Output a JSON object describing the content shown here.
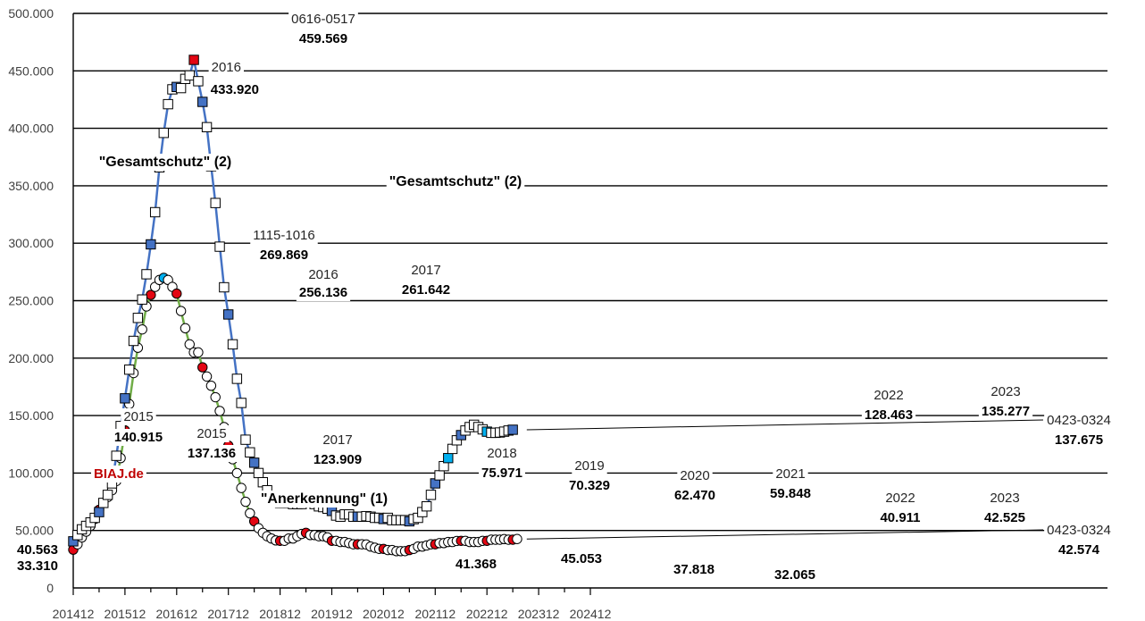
{
  "chart_data": {
    "type": "line",
    "ylim": [
      0,
      500000
    ],
    "y_ticks": [
      0,
      50000,
      100000,
      150000,
      200000,
      250000,
      300000,
      350000,
      400000,
      450000,
      500000
    ],
    "y_tick_labels": [
      "0",
      "50.000",
      "100.000",
      "150.000",
      "200.000",
      "250.000",
      "300.000",
      "350.000",
      "400.000",
      "450.000",
      "500.000"
    ],
    "x_tick_labels": [
      "201412",
      "201512",
      "201612",
      "201712",
      "201812",
      "201912",
      "202012",
      "202112",
      "202212",
      "202312",
      "202412"
    ],
    "grid": true,
    "brand": "BIAJ.de",
    "series": [
      {
        "name": "\"Gesamtschutz\" (2)",
        "line_color": "#4472c4",
        "start": "2014-12",
        "values": [
          40563,
          46000,
          51000,
          54000,
          57000,
          61000,
          66000,
          74000,
          81000,
          91000,
          115000,
          140915,
          165000,
          190000,
          215000,
          235000,
          251000,
          273000,
          299000,
          327000,
          366000,
          396000,
          421000,
          433920,
          436000,
          435000,
          443000,
          446000,
          459569,
          441000,
          423000,
          401000,
          367000,
          335000,
          297000,
          261642,
          238000,
          212000,
          182000,
          161000,
          129000,
          118000,
          109000,
          100000,
          92000,
          85000,
          80000,
          75971,
          74000,
          74000,
          74000,
          73000,
          73000,
          73000,
          76000,
          76000,
          73000,
          71000,
          70329,
          69000,
          67000,
          63000,
          62000,
          64000,
          64000,
          62000,
          62000,
          62000,
          62470,
          62000,
          61000,
          61000,
          60000,
          61000,
          59000,
          59000,
          59000,
          59000,
          58000,
          59848,
          61000,
          66000,
          71000,
          81000,
          91000,
          98000,
          106000,
          113000,
          121000,
          128463,
          133000,
          137000,
          140000,
          142000,
          140000,
          138000,
          136000,
          135000,
          135000,
          135277,
          136000,
          137000,
          137675
        ]
      },
      {
        "name": "\"Anerkennung\" (1)",
        "line_color": "#70ad47",
        "start": "2014-12",
        "values": [
          33310,
          38000,
          44000,
          49000,
          54000,
          60000,
          68000,
          74000,
          79000,
          85000,
          93000,
          113000,
          137136,
          160000,
          187000,
          209000,
          225000,
          245000,
          255000,
          262000,
          268000,
          269869,
          268000,
          262000,
          256136,
          241000,
          226000,
          212000,
          205000,
          205000,
          192000,
          184000,
          176000,
          166000,
          154000,
          140000,
          123909,
          112000,
          100000,
          87000,
          75000,
          65000,
          58000,
          52000,
          48000,
          45000,
          43000,
          41368,
          41000,
          41000,
          43000,
          43000,
          45000,
          47000,
          48000,
          46000,
          46000,
          45000,
          45053,
          44000,
          41000,
          41000,
          40000,
          40000,
          39000,
          38000,
          38000,
          38000,
          37818,
          36000,
          35000,
          34000,
          34000,
          33000,
          33000,
          32000,
          32000,
          32065,
          33000,
          34000,
          36000,
          36000,
          37000,
          38000,
          38000,
          39000,
          39000,
          40000,
          40000,
          40911,
          41000,
          41000,
          40000,
          40000,
          40000,
          41000,
          41000,
          42000,
          42000,
          42000,
          42525,
          42000,
          42000,
          42574
        ]
      }
    ],
    "annotations": [
      {
        "text": "0616-0517",
        "bold": false
      },
      {
        "text": "459.569",
        "bold": true
      },
      {
        "text": "2016",
        "bold": false
      },
      {
        "text": "433.920",
        "bold": true
      },
      {
        "text": "\"Gesamtschutz\" (2)",
        "bold": true
      },
      {
        "text": "\"Gesamtschutz\" (2)",
        "bold": true
      },
      {
        "text": "1115-1016",
        "bold": false
      },
      {
        "text": "269.869",
        "bold": true
      },
      {
        "text": "2016",
        "bold": false
      },
      {
        "text": "256.136",
        "bold": true
      },
      {
        "text": "2017",
        "bold": false
      },
      {
        "text": "261.642",
        "bold": true
      },
      {
        "text": "2015",
        "bold": false
      },
      {
        "text": "140.915",
        "bold": true
      },
      {
        "text": "2015",
        "bold": false
      },
      {
        "text": "137.136",
        "bold": true
      },
      {
        "text": "2017",
        "bold": false
      },
      {
        "text": "123.909",
        "bold": true
      },
      {
        "text": "\"Anerkennung\" (1)",
        "bold": true
      },
      {
        "text": "2018",
        "bold": false
      },
      {
        "text": "75.971",
        "bold": true
      },
      {
        "text": "2019",
        "bold": false
      },
      {
        "text": "70.329",
        "bold": true
      },
      {
        "text": "2020",
        "bold": false
      },
      {
        "text": "62.470",
        "bold": true
      },
      {
        "text": "2021",
        "bold": false
      },
      {
        "text": "59.848",
        "bold": true
      },
      {
        "text": "2022",
        "bold": false
      },
      {
        "text": "128.463",
        "bold": true
      },
      {
        "text": "2023",
        "bold": false
      },
      {
        "text": "135.277",
        "bold": true
      },
      {
        "text": "0423-0324",
        "bold": false
      },
      {
        "text": "137.675",
        "bold": true
      },
      {
        "text": "2022",
        "bold": false
      },
      {
        "text": "40.911",
        "bold": true
      },
      {
        "text": "2023",
        "bold": false
      },
      {
        "text": "42.525",
        "bold": true
      },
      {
        "text": "0423-0324",
        "bold": false
      },
      {
        "text": "42.574",
        "bold": true
      },
      {
        "text": "40.563",
        "bold": true
      },
      {
        "text": "33.310",
        "bold": true
      },
      {
        "text": "41.368",
        "bold": true
      },
      {
        "text": "45.053",
        "bold": true
      },
      {
        "text": "37.818",
        "bold": true
      },
      {
        "text": "32.065",
        "bold": true
      }
    ]
  }
}
